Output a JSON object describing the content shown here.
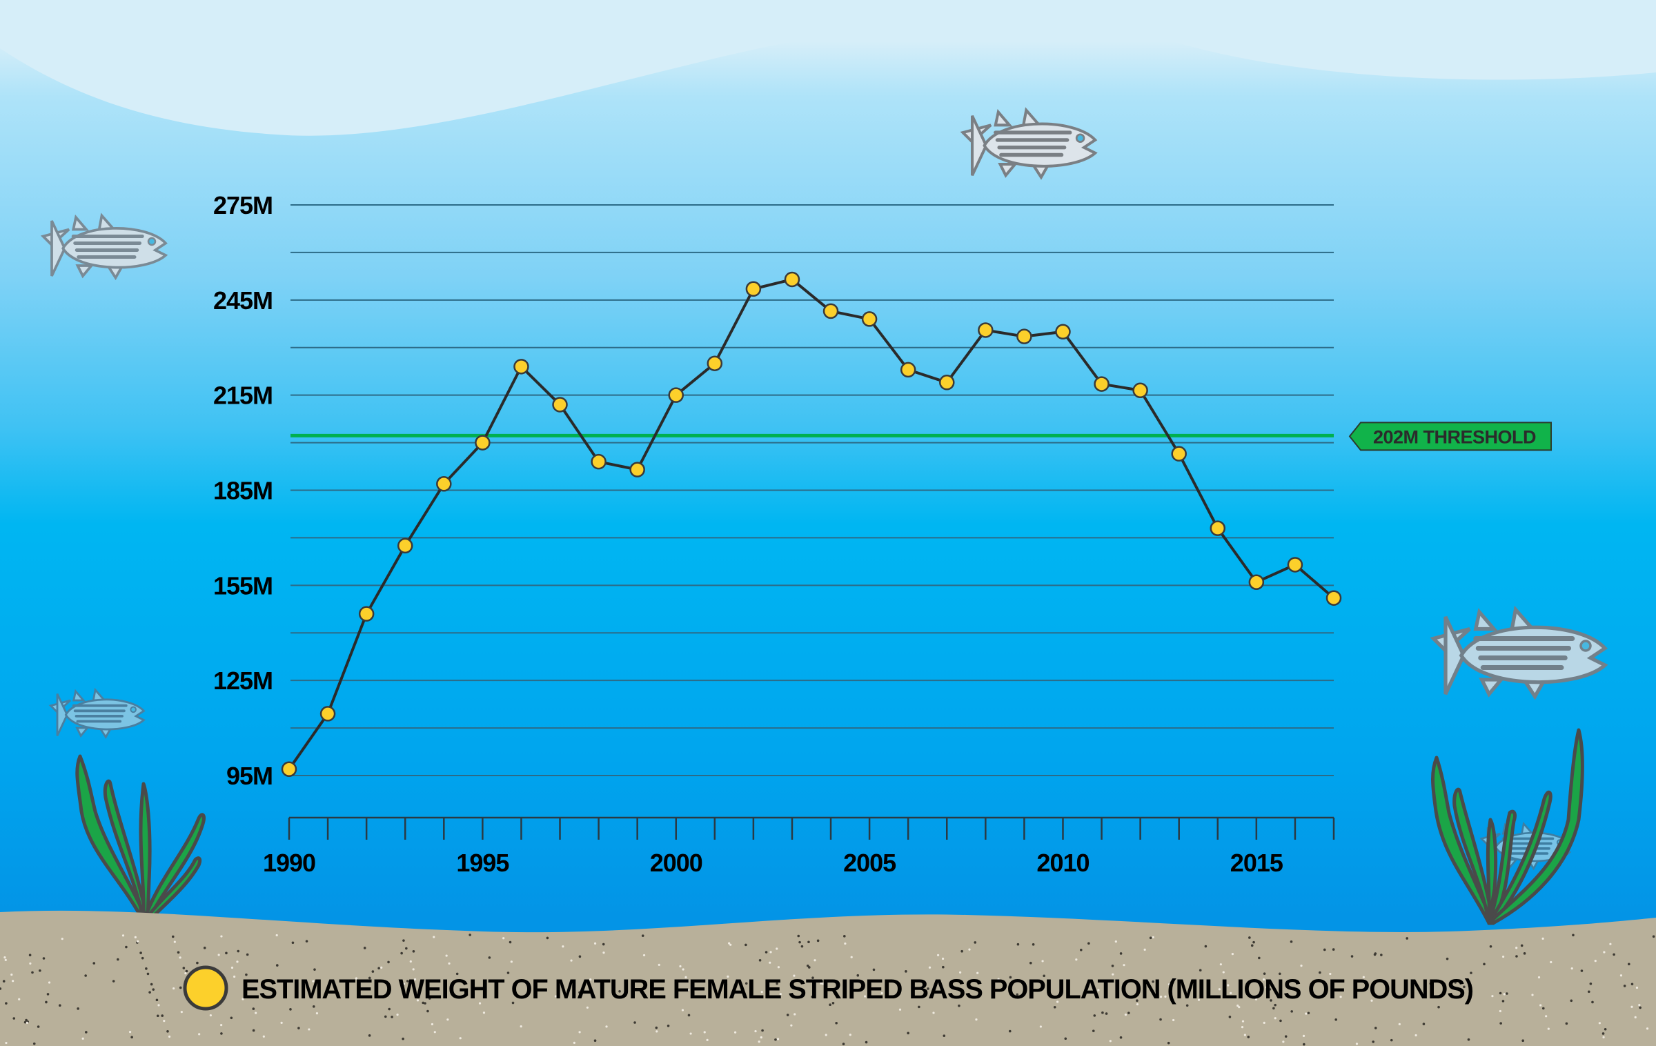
{
  "chart_data": {
    "type": "line",
    "title": "",
    "xlabel": "",
    "ylabel": "",
    "x": [
      1990,
      1991,
      1992,
      1993,
      1994,
      1995,
      1996,
      1997,
      1998,
      1999,
      2000,
      2001,
      2002,
      2003,
      2004,
      2005,
      2006,
      2007,
      2008,
      2009,
      2010,
      2011,
      2012,
      2013,
      2014,
      2015,
      2016,
      2017
    ],
    "series": [
      {
        "name": "Estimated weight of mature female striped bass population (millions of pounds)",
        "values": [
          97,
          114.5,
          146,
          167.5,
          187,
          200,
          224,
          212,
          194,
          191.5,
          215,
          225,
          248.5,
          251.5,
          241.5,
          239,
          223,
          219,
          235.5,
          233.5,
          235,
          218.5,
          216.5,
          196.5,
          173,
          156,
          161.5,
          151
        ]
      }
    ],
    "xlim": [
      1990,
      2017
    ],
    "ylim": [
      95,
      275
    ],
    "y_ticks": [
      95,
      125,
      155,
      185,
      215,
      245,
      275
    ],
    "y_tick_labels": [
      "95M",
      "125M",
      "155M",
      "185M",
      "215M",
      "245M",
      "275M"
    ],
    "y_gridlines": [
      95,
      110,
      125,
      140,
      155,
      170,
      185,
      200,
      215,
      230,
      245,
      260,
      275
    ],
    "x_ticks": [
      1990,
      1995,
      2000,
      2005,
      2010,
      2015
    ],
    "x_tick_labels": [
      "1990",
      "1995",
      "2000",
      "2005",
      "2010",
      "2015"
    ],
    "minor_x_ticks_every": 1,
    "grid": true,
    "threshold": {
      "value": 202,
      "label": "202M THRESHOLD",
      "color": "#00b04f"
    },
    "legend": {
      "position": "bottom-left",
      "entries": [
        "ESTIMATED WEIGHT OF MATURE FEMALE STRIPED BASS POPULATION (MILLIONS OF POUNDS)"
      ]
    },
    "colors": {
      "line": "#2a2a2a",
      "marker_fill": "#fcd02b",
      "marker_stroke": "#3a3a3a",
      "grid": "#2c6b87",
      "threshold": "#00b04f",
      "sand": "#b8b09a"
    }
  }
}
